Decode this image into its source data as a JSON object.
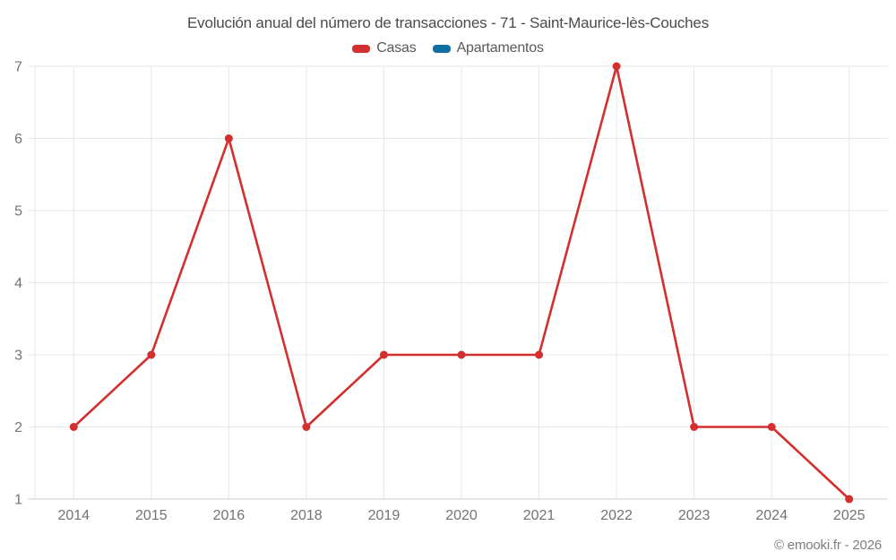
{
  "chart_data": {
    "type": "line",
    "title": "Evolución anual del número de transacciones - 71 - Saint-Maurice-lès-Couches",
    "categories": [
      "2014",
      "2015",
      "2016",
      "2018",
      "2019",
      "2020",
      "2021",
      "2022",
      "2023",
      "2024",
      "2025"
    ],
    "series": [
      {
        "name": "Casas",
        "color": "#d32f2f",
        "values": [
          2,
          3,
          6,
          2,
          3,
          3,
          3,
          7,
          2,
          2,
          1
        ]
      },
      {
        "name": "Apartamentos",
        "color": "#0f6fa3",
        "values": []
      }
    ],
    "yticks": [
      1,
      2,
      3,
      4,
      5,
      6,
      7
    ],
    "ylim": [
      1,
      7
    ],
    "grid": true,
    "legend_position": "top"
  },
  "colors": {
    "background": "#ffffff",
    "grid": "#e7e7e7",
    "axis_line": "#cccccc",
    "tick_text": "#737373",
    "title_text": "#4a4a4a",
    "legend_text": "#595959",
    "footer_text": "#7d7d7d"
  },
  "footer": {
    "text": "© emooki.fr - 2026"
  }
}
